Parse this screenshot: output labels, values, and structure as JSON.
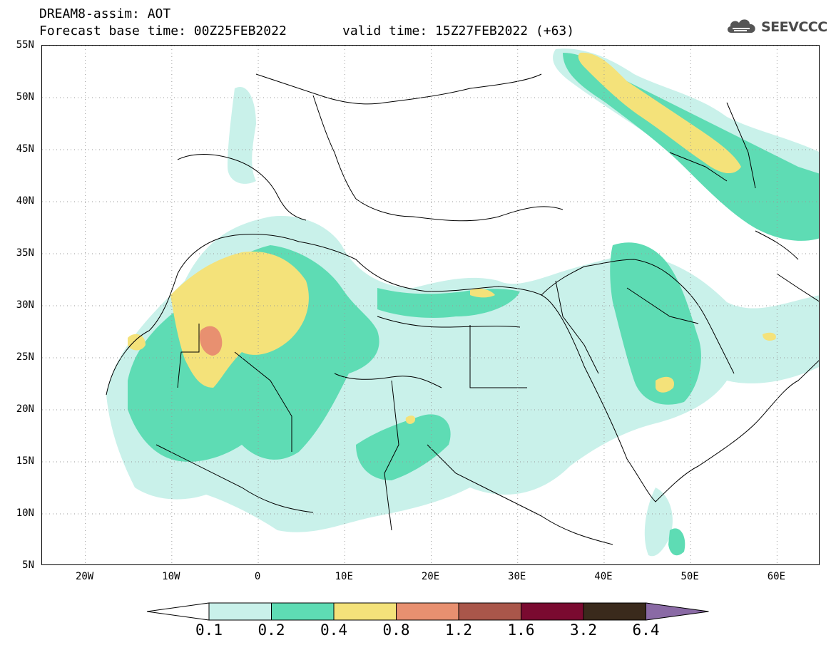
{
  "header": {
    "title": "DREAM8-assim: AOT",
    "base_time": "Forecast base time: 00Z25FEB2022",
    "valid_time": "valid time: 15Z27FEB2022 (+63)"
  },
  "logo": {
    "text": "SEEVCCC",
    "icon": "cloud-icon"
  },
  "map": {
    "variable": "Aerosol Optical Thickness (AOT)",
    "lon_range": [
      -25,
      65
    ],
    "lat_range": [
      5,
      55
    ],
    "grid": true,
    "lat_labels": [
      "55N",
      "50N",
      "45N",
      "40N",
      "35N",
      "30N",
      "25N",
      "20N",
      "15N",
      "10N",
      "5N"
    ],
    "lon_labels": [
      "20W",
      "10W",
      "0",
      "10E",
      "20E",
      "30E",
      "40E",
      "50E",
      "60E"
    ]
  },
  "colorbar": {
    "labels": [
      "0.1",
      "0.2",
      "0.4",
      "0.8",
      "1.2",
      "1.6",
      "3.2",
      "6.4"
    ],
    "colors": [
      "#ffffff",
      "#c9f1ea",
      "#5edcb4",
      "#f4e27a",
      "#e89070",
      "#a9564a",
      "#7a0a30",
      "#3a2a1c",
      "#8a6aa5"
    ]
  }
}
